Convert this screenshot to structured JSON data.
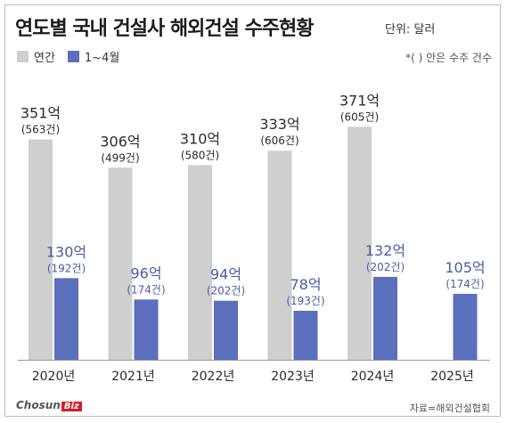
{
  "title": "연도별 국내 건설사 해외건설 수주현황",
  "unit": "단위: 달러",
  "note": "*(  ) 안은 수주 건수",
  "source": "자료=해외건설협회",
  "logo": {
    "text": "Chosun",
    "badge": "Biz"
  },
  "colors": {
    "annual": "#cfcfcf",
    "jan_apr": "#5b6fbd",
    "label_annual": "#2b2b2b",
    "label_jan_apr": "#4a5ca8"
  },
  "chart_data": {
    "type": "bar",
    "categories": [
      "2020년",
      "2021년",
      "2022년",
      "2023년",
      "2024년",
      "2025년"
    ],
    "series": [
      {
        "name": "연간",
        "values": [
          351,
          306,
          310,
          333,
          371,
          null
        ],
        "labels": [
          "351억",
          "306억",
          "310억",
          "333억",
          "371억",
          ""
        ],
        "counts": [
          "(563건)",
          "(499건)",
          "(580건)",
          "(606건)",
          "(605건)",
          ""
        ]
      },
      {
        "name": "1~4월",
        "values": [
          130,
          96,
          94,
          78,
          132,
          105
        ],
        "labels": [
          "130억",
          "96억",
          "94억",
          "78억",
          "132억",
          "105억"
        ],
        "counts": [
          "(192건)",
          "(174건)",
          "(202건)",
          "(193건)",
          "(202건)",
          "(174건)"
        ]
      }
    ],
    "unit": "억 달러",
    "legend": "top-left"
  }
}
